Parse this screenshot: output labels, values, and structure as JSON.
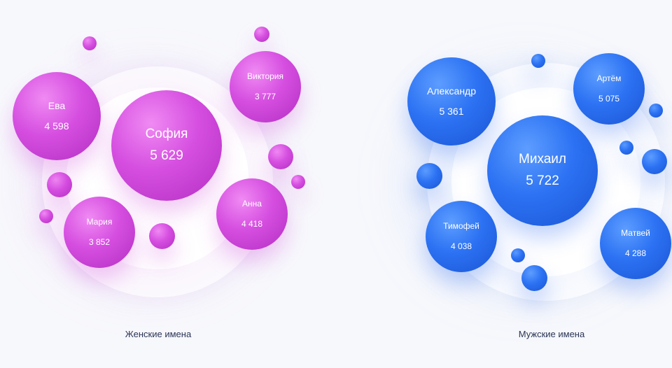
{
  "chart_data": [
    {
      "type": "bubble",
      "title": "Женские имена",
      "names": [
        "София",
        "Ева",
        "Виктория",
        "Мария",
        "Анна"
      ],
      "values": [
        5629,
        4598,
        3777,
        3852,
        4418
      ],
      "labels": [
        "5 629",
        "4 598",
        "3 777",
        "3 852",
        "4 418"
      ],
      "color": "#d54ee0"
    },
    {
      "type": "bubble",
      "title": "Мужские имена",
      "names": [
        "Михаил",
        "Александр",
        "Артём",
        "Тимофей",
        "Матвей"
      ],
      "values": [
        5722,
        5361,
        5075,
        4038,
        4288
      ],
      "labels": [
        "5 722",
        "5 361",
        "5 075",
        "4 038",
        "4 288"
      ],
      "color": "#2c72f3"
    }
  ]
}
